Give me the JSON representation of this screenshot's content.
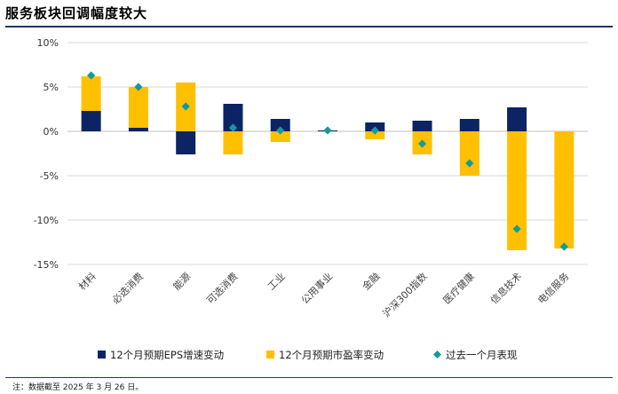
{
  "header": {
    "title": "服务板块回调幅度较大"
  },
  "footer": {
    "note": "注：数据截至 2025 年 3 月 26 日。"
  },
  "colors": {
    "eps": "#0c2463",
    "pe": "#ffc000",
    "perf": "#119b9b",
    "grid": "#d9d9d9",
    "rule": "#1f3864"
  },
  "chart_data": {
    "type": "bar",
    "stacked": true,
    "categories": [
      "材料",
      "必选消费",
      "能源",
      "可选消费",
      "工业",
      "公用事业",
      "金融",
      "沪深300指数",
      "医疗健康",
      "信息技术",
      "电信服务"
    ],
    "series": [
      {
        "name": "12个月预期EPS增速变动",
        "kind": "bar",
        "values": [
          2.3,
          0.4,
          -2.6,
          3.1,
          1.4,
          0.1,
          1.0,
          1.2,
          1.4,
          2.7,
          0.0
        ]
      },
      {
        "name": "12个月预期市盈率变动",
        "kind": "bar",
        "values": [
          3.9,
          4.6,
          5.5,
          -2.6,
          -1.2,
          0.0,
          -0.9,
          -2.6,
          -5.0,
          -13.4,
          -13.2
        ]
      },
      {
        "name": "过去一个月表现",
        "kind": "marker",
        "values": [
          6.3,
          5.0,
          2.8,
          0.4,
          0.1,
          0.1,
          0.1,
          -1.4,
          -3.6,
          -11.0,
          -13.0
        ]
      }
    ],
    "y_ticks": [
      "10%",
      "5%",
      "0%",
      "-5%",
      "-10%",
      "-15%"
    ],
    "ylim": [
      -15,
      10
    ],
    "grid": true,
    "legend_position": "bottom"
  }
}
